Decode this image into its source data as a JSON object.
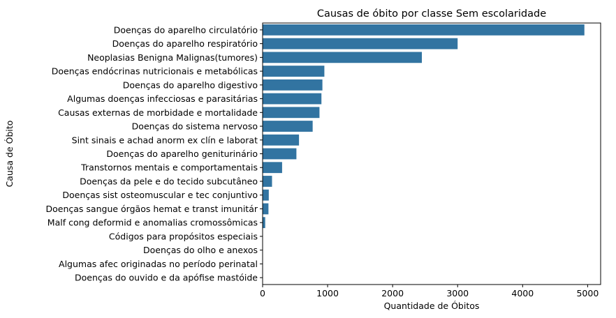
{
  "chart_data": {
    "type": "bar",
    "orientation": "horizontal",
    "title": "Causas de óbito por classe Sem escolaridade",
    "xlabel": "Quantidade de Óbitos",
    "ylabel": "Causa de Óbito",
    "xlim": [
      0,
      5200
    ],
    "xticks": [
      0,
      1000,
      2000,
      3000,
      4000,
      5000
    ],
    "grid": false,
    "bar_color": "#3274a1",
    "categories": [
      "Doenças do aparelho circulatório",
      "Doenças do aparelho respiratório",
      "Neoplasias Benigna Malignas(tumores)",
      "Doenças endócrinas nutricionais e metabólicas",
      "Doenças do aparelho digestivo",
      "Algumas doenças infecciosas e parasitárias",
      "Causas externas de morbidade e mortalidade",
      "Doenças do sistema nervoso",
      "Sint sinais e achad anorm ex clín e laborat",
      "Doenças do aparelho geniturinário",
      "Transtornos mentais e comportamentais",
      "Doenças da pele e do tecido subcutâneo",
      "Doenças sist osteomuscular e tec conjuntivo",
      "Doenças sangue órgãos hemat e transt imunitár",
      "Malf cong deformid e anomalias cromossômicas",
      "Códigos para propósitos especiais",
      "Doenças do olho e anexos",
      "Algumas afec originadas no período perinatal ",
      "Doenças do ouvido e da apófise mastóide"
    ],
    "values": [
      4950,
      3000,
      2450,
      950,
      920,
      905,
      875,
      770,
      560,
      520,
      300,
      145,
      95,
      90,
      40,
      3,
      2,
      2,
      1
    ]
  }
}
